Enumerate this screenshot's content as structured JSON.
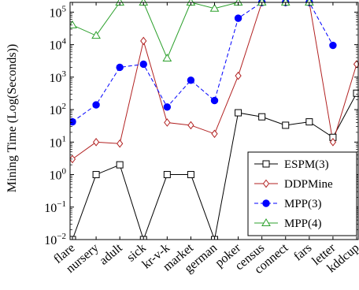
{
  "chart_data": {
    "type": "line",
    "ylabel": "Mining Time (Log(Seconds))",
    "y_scale": "log",
    "ylim": [
      0.01,
      200000
    ],
    "y_ticks": [
      {
        "value": 0.01,
        "base": "10",
        "exp": "−2"
      },
      {
        "value": 0.1,
        "base": "10",
        "exp": "−1"
      },
      {
        "value": 1,
        "base": "10",
        "exp": "0"
      },
      {
        "value": 10,
        "base": "10",
        "exp": "1"
      },
      {
        "value": 100,
        "base": "10",
        "exp": "2"
      },
      {
        "value": 1000,
        "base": "10",
        "exp": "3"
      },
      {
        "value": 10000,
        "base": "10",
        "exp": "4"
      },
      {
        "value": 100000,
        "base": "10",
        "exp": "5"
      }
    ],
    "categories": [
      "flare",
      "nursery",
      "adult",
      "sick",
      "kr-v-k",
      "market",
      "german",
      "poker",
      "census",
      "connect",
      "fars",
      "letter",
      "kddcup"
    ],
    "legend_position": "bottom-right",
    "series": [
      {
        "name": "ESPM(3)",
        "color": "#000000",
        "marker": "square",
        "dashed": false,
        "values": [
          0.01,
          1,
          2,
          0.01,
          1,
          1,
          0.01,
          80,
          60,
          33,
          42,
          14,
          320
        ]
      },
      {
        "name": "DDPMine",
        "color": "#b22222",
        "marker": "diamond",
        "dashed": false,
        "values": [
          3,
          10,
          9,
          13000,
          40,
          33,
          18,
          1100,
          200000,
          200000,
          200000,
          10,
          2500
        ]
      },
      {
        "name": "MPP(3)",
        "color": "#0000ff",
        "marker": "circle",
        "dashed": true,
        "values": [
          42,
          140,
          2000,
          2500,
          120,
          800,
          190,
          65000,
          200000,
          200000,
          200000,
          9500,
          null
        ]
      },
      {
        "name": "MPP(4)",
        "color": "#2ca02c",
        "marker": "triangle",
        "dashed": false,
        "values": [
          40000,
          19000,
          200000,
          200000,
          3800,
          200000,
          130000,
          200000,
          200000,
          200000,
          200000,
          null,
          null
        ]
      }
    ]
  }
}
